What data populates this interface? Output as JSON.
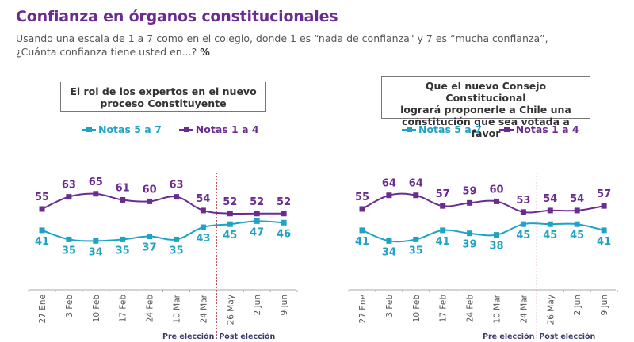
{
  "header": {
    "title": "Confianza en órganos constitucionales",
    "subtitle_line1": "Usando una escala de 1 a 7 como en el colegio, donde 1 es “nada de confianza\" y 7 es “mucha confianza”,",
    "subtitle_line2": "¿Cuánta confianza tiene usted en...?",
    "subtitle_unit": "%"
  },
  "colors": {
    "notas_5_7": "#1fa3c4",
    "notas_1_4": "#6b2c91",
    "divider": "#b33b3b"
  },
  "chart_data": [
    {
      "type": "line",
      "title": "El rol de los expertos en el nuevo proceso Constituyente",
      "title_lines": [
        "El rol de los expertos en el nuevo",
        "proceso Constituyente"
      ],
      "categories": [
        "27 Ene",
        "3 Feb",
        "10 Feb",
        "17 Feb",
        "24 Feb",
        "10 Mar",
        "24 Mar",
        "26 May",
        "2 Jun",
        "9 Jun"
      ],
      "series": [
        {
          "name": "Notas 5 a 7",
          "color": "#1fa3c4",
          "values": [
            41,
            35,
            34,
            35,
            37,
            35,
            43,
            45,
            47,
            46
          ]
        },
        {
          "name": "Notas 1 a 4",
          "color": "#6b2c91",
          "values": [
            55,
            63,
            65,
            61,
            60,
            63,
            54,
            52,
            52,
            52
          ]
        }
      ],
      "legend_position": "top",
      "grid": false,
      "annotations": {
        "divider_after": "24 Mar",
        "pre_label": "Pre elección",
        "post_label": "Post elección"
      }
    },
    {
      "type": "line",
      "title": "Que el nuevo Consejo Constitucional logrará proponerle a Chile una constitución que sea votada a favor",
      "title_lines": [
        "Que el nuevo Consejo Constitucional",
        "logrará proponerle a Chile una",
        "constitución que sea votada a favor"
      ],
      "categories": [
        "27 Ene",
        "3 Feb",
        "10 Feb",
        "17 Feb",
        "24 Feb",
        "10 Mar",
        "24 Mar",
        "26 May",
        "2 Jun",
        "9 Jun"
      ],
      "series": [
        {
          "name": "Notas 5 a 7",
          "color": "#1fa3c4",
          "values": [
            41,
            34,
            35,
            41,
            39,
            38,
            45,
            45,
            45,
            41
          ]
        },
        {
          "name": "Notas 1 a 4",
          "color": "#6b2c91",
          "values": [
            55,
            64,
            64,
            57,
            59,
            60,
            53,
            54,
            54,
            57
          ]
        }
      ],
      "legend_position": "top",
      "grid": false,
      "annotations": {
        "divider_after": "24 Mar",
        "pre_label": "Pre elección",
        "post_label": "Post elección"
      }
    }
  ]
}
